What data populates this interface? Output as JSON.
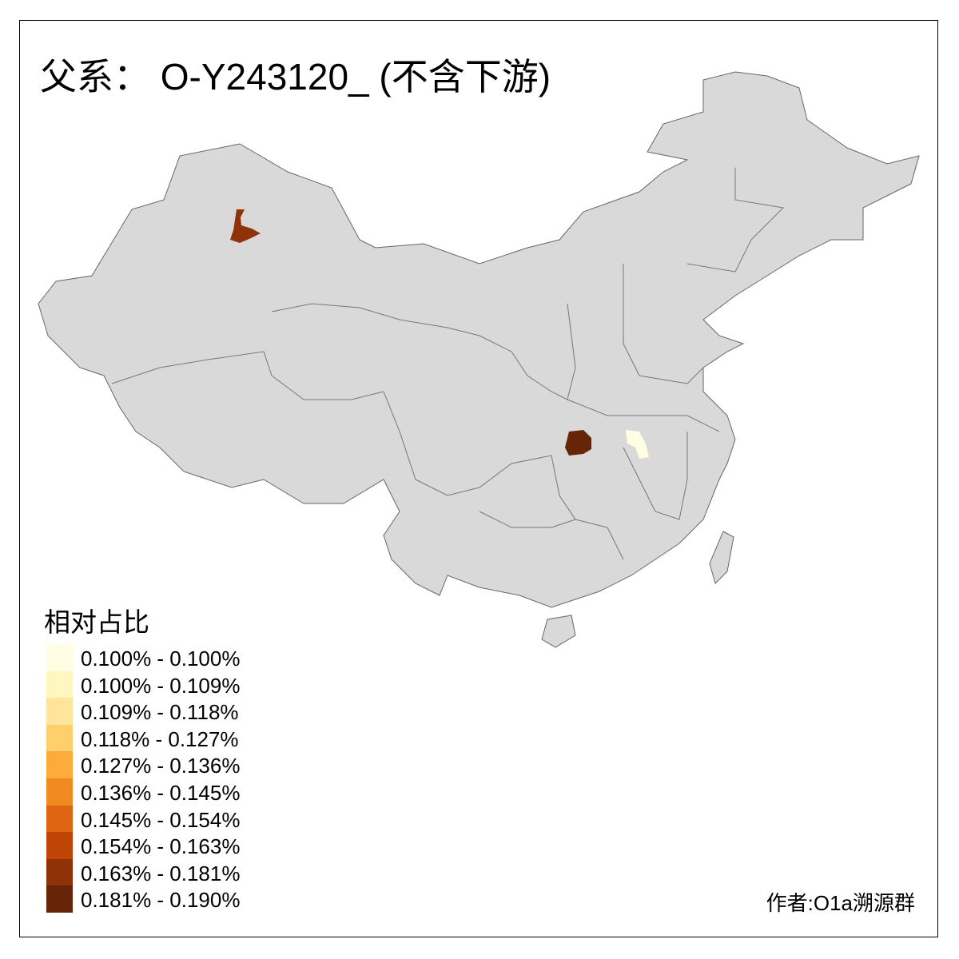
{
  "title": "父系： O-Y243120_ (不含下游)",
  "legend": {
    "title": "相对占比",
    "items": [
      {
        "label": "0.100% - 0.100%",
        "color": "#fffde3"
      },
      {
        "label": "0.100% - 0.109%",
        "color": "#fff6c0"
      },
      {
        "label": "0.109% - 0.118%",
        "color": "#fee59b"
      },
      {
        "label": "0.118% - 0.127%",
        "color": "#fecf6a"
      },
      {
        "label": "0.127% - 0.136%",
        "color": "#fdab3c"
      },
      {
        "label": "0.136% - 0.145%",
        "color": "#f28a22"
      },
      {
        "label": "0.145% - 0.154%",
        "color": "#df6513"
      },
      {
        "label": "0.154% - 0.163%",
        "color": "#be4506"
      },
      {
        "label": "0.163% - 0.181%",
        "color": "#903208"
      },
      {
        "label": "0.181% - 0.190%",
        "color": "#662506"
      }
    ]
  },
  "regions": [
    {
      "area": "Xinjiang north",
      "class": "0.163% - 0.181%",
      "color": "#903208"
    },
    {
      "area": "Hubei west",
      "class": "0.181% - 0.190%",
      "color": "#662506"
    },
    {
      "area": "Hubei east / Anhui border",
      "class": "0.100% - 0.100%",
      "color": "#fffde3"
    }
  ],
  "base_color": "#d9d9d9",
  "author": "作者:O1a溯源群"
}
